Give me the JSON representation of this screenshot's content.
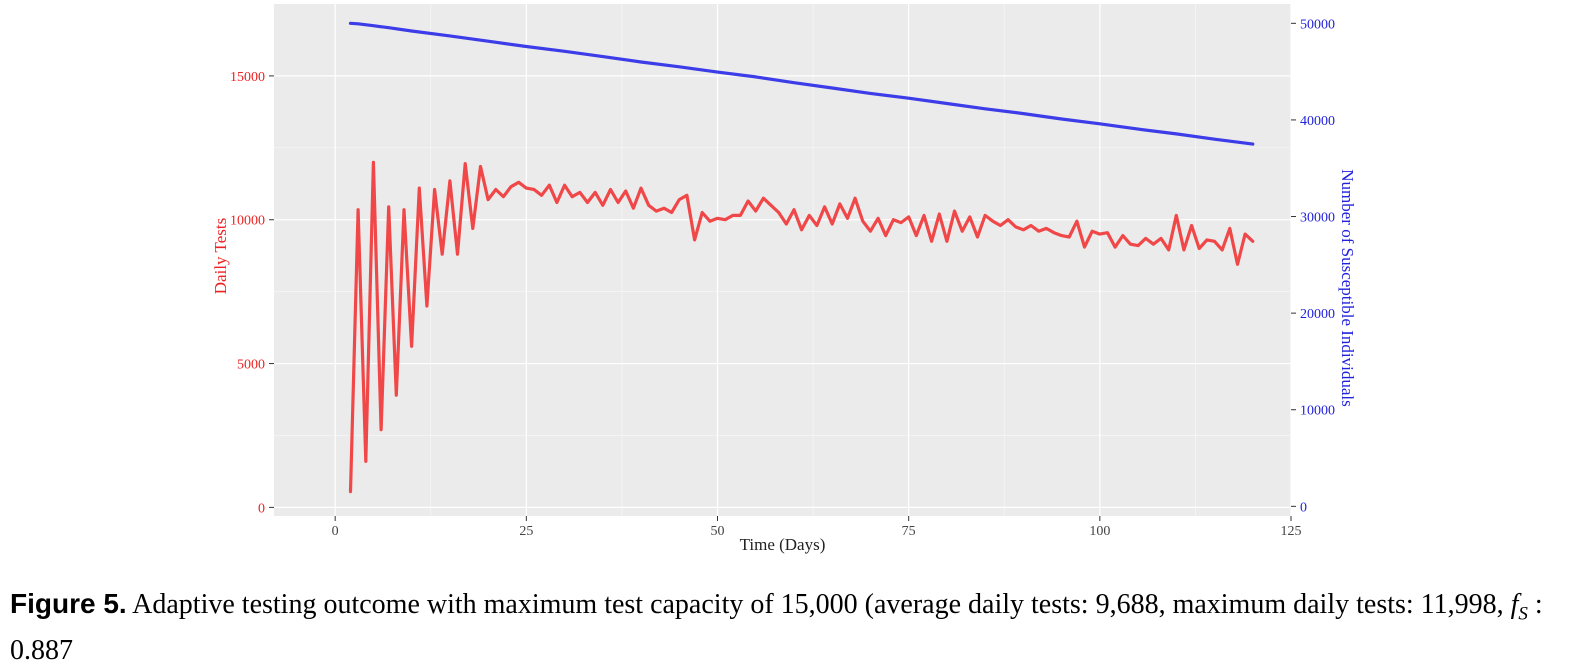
{
  "chart_data": {
    "type": "line",
    "xlabel": "Time (Days)",
    "ylabel_left": "Daily Tests",
    "ylabel_right": "Number of Susceptible Individuals",
    "xlim": [
      -8,
      125
    ],
    "ylim_left": [
      -300,
      17500
    ],
    "ylim_right": [
      -1000,
      52000
    ],
    "x_ticks": [
      0,
      25,
      50,
      75,
      100,
      125
    ],
    "y_ticks_left": [
      0,
      5000,
      10000,
      15000
    ],
    "y_ticks_right": [
      0,
      10000,
      20000,
      30000,
      40000,
      50000
    ],
    "grid": true,
    "colors": {
      "daily_tests": "#f04848",
      "susceptible": "#3c3ce8",
      "panel": "#ebebeb",
      "grid": "#ffffff",
      "left_axis_text": "#ee2222",
      "right_axis_text": "#2222dd",
      "x_axis_text": "#444444"
    },
    "series": [
      {
        "name": "Daily Tests",
        "axis": "left",
        "x": [
          2,
          3,
          4,
          5,
          6,
          7,
          8,
          9,
          10,
          11,
          12,
          13,
          14,
          15,
          16,
          17,
          18,
          19,
          20,
          21,
          22,
          23,
          24,
          25,
          26,
          27,
          28,
          29,
          30,
          31,
          32,
          33,
          34,
          35,
          36,
          37,
          38,
          39,
          40,
          41,
          42,
          43,
          44,
          45,
          46,
          47,
          48,
          49,
          50,
          51,
          52,
          53,
          54,
          55,
          56,
          57,
          58,
          59,
          60,
          61,
          62,
          63,
          64,
          65,
          66,
          67,
          68,
          69,
          70,
          71,
          72,
          73,
          74,
          75,
          76,
          77,
          78,
          79,
          80,
          81,
          82,
          83,
          84,
          85,
          86,
          87,
          88,
          89,
          90,
          91,
          92,
          93,
          94,
          95,
          96,
          97,
          98,
          99,
          100,
          101,
          102,
          103,
          104,
          105,
          106,
          107,
          108,
          109,
          110,
          111,
          112,
          113,
          114,
          115,
          116,
          117,
          118,
          119,
          120
        ],
        "values": [
          550,
          10350,
          1600,
          11998,
          2700,
          10450,
          3900,
          10350,
          5600,
          11100,
          7000,
          11050,
          8800,
          11350,
          8800,
          11950,
          9700,
          11850,
          10700,
          11050,
          10800,
          11150,
          11300,
          11100,
          11050,
          10850,
          11200,
          10600,
          11200,
          10800,
          10950,
          10600,
          10950,
          10500,
          11050,
          10600,
          11000,
          10400,
          11100,
          10500,
          10300,
          10400,
          10250,
          10700,
          10850,
          9300,
          10250,
          9950,
          10050,
          10000,
          10150,
          10150,
          10650,
          10300,
          10750,
          10500,
          10250,
          9850,
          10350,
          9650,
          10150,
          9800,
          10450,
          9850,
          10550,
          10050,
          10750,
          9950,
          9600,
          10050,
          9450,
          10000,
          9900,
          10100,
          9450,
          10150,
          9250,
          10200,
          9250,
          10300,
          9600,
          10100,
          9400,
          10150,
          9950,
          9800,
          10000,
          9750,
          9650,
          9800,
          9600,
          9700,
          9550,
          9450,
          9400,
          9950,
          9050,
          9600,
          9500,
          9550,
          9050,
          9450,
          9150,
          9100,
          9350,
          9150,
          9350,
          8950,
          10150,
          8950,
          9800,
          9000,
          9300,
          9250,
          8950,
          9700,
          8450,
          9500,
          9250
        ]
      },
      {
        "name": "Number of Susceptible Individuals",
        "axis": "right",
        "x": [
          2,
          3,
          5,
          7,
          10,
          15,
          20,
          25,
          30,
          35,
          40,
          45,
          50,
          55,
          60,
          65,
          70,
          75,
          80,
          85,
          90,
          95,
          100,
          105,
          110,
          115,
          120
        ],
        "values": [
          50000,
          49950,
          49750,
          49550,
          49200,
          48700,
          48150,
          47600,
          47100,
          46550,
          46000,
          45500,
          44950,
          44450,
          43850,
          43300,
          42750,
          42250,
          41700,
          41150,
          40650,
          40100,
          39600,
          39050,
          38550,
          38000,
          37500
        ]
      }
    ]
  },
  "caption": {
    "label": "Figure 5.",
    "text_before": " Adaptive testing outcome with maximum test capacity of 15,000 (average daily tests: 9,688, maximum daily tests: 11,998, ",
    "symbol": "f",
    "subscript": "S",
    "text_after": " : 0.887"
  }
}
